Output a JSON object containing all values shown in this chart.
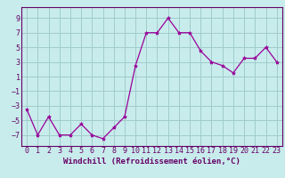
{
  "x": [
    0,
    1,
    2,
    3,
    4,
    5,
    6,
    7,
    8,
    9,
    10,
    11,
    12,
    13,
    14,
    15,
    16,
    17,
    18,
    19,
    20,
    21,
    22,
    23
  ],
  "y": [
    -3.5,
    -7,
    -4.5,
    -7,
    -7,
    -5.5,
    -7,
    -7.5,
    -6,
    -4.5,
    2.5,
    7,
    7,
    9,
    7,
    7,
    4.5,
    3,
    2.5,
    1.5,
    3.5,
    3.5,
    5,
    3
  ],
  "line_color": "#990099",
  "marker": "*",
  "marker_size": 3,
  "bg_color": "#c8ecec",
  "grid_color": "#a0cccc",
  "xlabel": "Windchill (Refroidissement éolien,°C)",
  "xlabel_fontsize": 6.5,
  "yticks": [
    -7,
    -5,
    -3,
    -1,
    1,
    3,
    5,
    7,
    9
  ],
  "xticks": [
    0,
    1,
    2,
    3,
    4,
    5,
    6,
    7,
    8,
    9,
    10,
    11,
    12,
    13,
    14,
    15,
    16,
    17,
    18,
    19,
    20,
    21,
    22,
    23
  ],
  "ylim": [
    -8.5,
    10.5
  ],
  "xlim": [
    -0.5,
    23.5
  ],
  "tick_fontsize": 6,
  "label_color": "#660066"
}
